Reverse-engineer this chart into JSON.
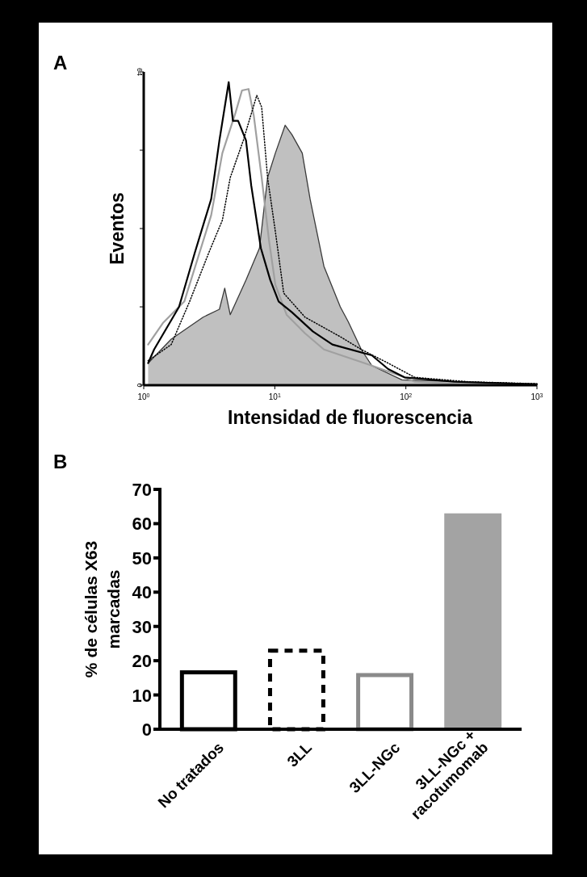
{
  "chart_data": [
    {
      "type": "line",
      "title": "A",
      "xlabel": "Intensidad de fluorescencia",
      "ylabel": "Eventos",
      "log": "x",
      "xlim": [
        1,
        1000
      ],
      "ylim": [
        0,
        64
      ],
      "xticks": [
        {
          "value": 1,
          "label": "10$^{0}$"
        },
        {
          "value": 10,
          "label": "10$^{1}$"
        },
        {
          "value": 100,
          "label": "10$^{2}$"
        },
        {
          "value": 1000,
          "label": "10$^{3}$"
        }
      ],
      "yticks": [
        0,
        {
          "value": 16,
          "label": null
        },
        {
          "value": 32,
          "label": null
        },
        {
          "value": 48,
          "label": null
        },
        64
      ],
      "grid": false,
      "series": [
        {
          "type": "area",
          "color": "#c0c0c0",
          "x": [
            1.08,
            1.62,
            2.84,
            3.78,
            4.15,
            4.57,
            6.03,
            7.64,
            8.81,
            10.1,
            12.0,
            13.5,
            16.2,
            18.6,
            23.7,
            31.6,
            36.3,
            45.7,
            55.0,
            93.3,
            1000
          ],
          "values": [
            4.5,
            9.4,
            13.9,
            15.5,
            19.8,
            14.4,
            21.5,
            28,
            42.4,
            47.4,
            53.1,
            51.2,
            47.4,
            38,
            24.3,
            16,
            13,
            7.3,
            4,
            1.1,
            0.2
          ]
        },
        {
          "type": "line",
          "color": "#a0a0a0",
          "line_style": "solid",
          "x": [
            1.08,
            1.4,
            2.04,
            3.27,
            3.98,
            5.01,
            5.62,
            6.31,
            6.92,
            7.94,
            9.02,
            10.1,
            12.3,
            17.0,
            23.7,
            55.0,
            97.7,
            117,
            234,
            1000
          ],
          "values": [
            8.3,
            12.7,
            17.1,
            34.7,
            47.4,
            55.6,
            60.2,
            60.5,
            55,
            42.4,
            29.7,
            20.5,
            14.4,
            10.6,
            7.3,
            4,
            1.6,
            0.7,
            0.3,
            0.2
          ]
        },
        {
          "type": "line",
          "color": "#000000",
          "line_style": "dotted",
          "x": [
            1.08,
            1.62,
            2.24,
            3.13,
            3.98,
            4.57,
            5.75,
            7.29,
            7.94,
            8.81,
            10.1,
            11.7,
            17.0,
            31.6,
            45.7,
            73.3,
            117,
            302,
            1000
          ],
          "values": [
            5,
            8.3,
            17.1,
            27,
            33.7,
            42.4,
            50,
            59.2,
            56.8,
            42.4,
            31.4,
            18.8,
            13.9,
            9.9,
            7.3,
            4.5,
            1.6,
            0.7,
            0.3
          ]
        },
        {
          "type": "line",
          "color": "#000000",
          "line_style": "solid",
          "x": [
            1.08,
            1.2,
            1.86,
            2.45,
            2.92,
            3.27,
            3.78,
            4.45,
            4.79,
            5.25,
            6.03,
            6.61,
            7.83,
            9.23,
            10.7,
            13.5,
            19.5,
            27.5,
            55.0,
            73.3,
            97.7,
            234,
            1000
          ],
          "values": [
            4.5,
            7.3,
            16,
            27,
            33.7,
            38,
            50,
            61.9,
            54,
            54,
            50,
            40.8,
            28,
            21.5,
            17.1,
            14.9,
            11,
            8.3,
            6.1,
            3.3,
            1.6,
            0.7,
            0.2
          ]
        }
      ]
    },
    {
      "type": "bar",
      "title": "B",
      "ylabel": "% de células X63 marcadas",
      "ylim": [
        0,
        70
      ],
      "yticks": [
        0,
        10,
        20,
        30,
        40,
        50,
        60,
        70
      ],
      "grid": false,
      "categories": [
        "No tratados",
        "3LL",
        "3LL-NGc",
        "3LL-NGc + racotumomab"
      ],
      "series": [
        {
          "color": "#000000",
          "line_style": "solid",
          "values": [
            16.6,
            null,
            null,
            null
          ]
        },
        {
          "color": "#000000",
          "line_style": "dashed",
          "values": [
            null,
            22.9,
            null,
            null
          ]
        },
        {
          "color": "#8a8a8a",
          "line_style": "solid",
          "values": [
            null,
            null,
            15.8,
            null
          ]
        },
        {
          "color": "#a3a3a3",
          "values": [
            null,
            null,
            null,
            63.0
          ]
        }
      ]
    }
  ]
}
